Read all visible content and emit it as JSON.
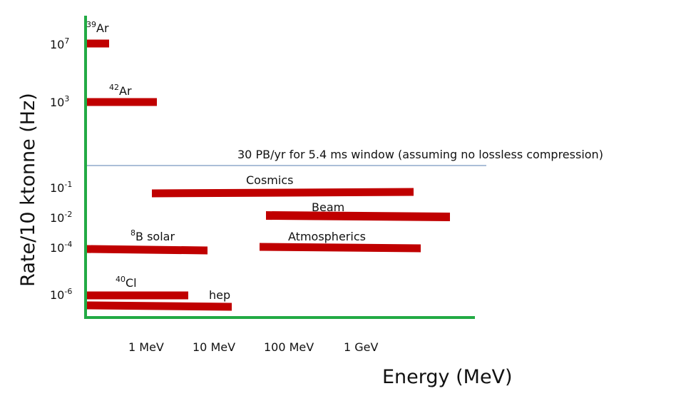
{
  "chart_data": {
    "type": "bar",
    "orientation": "horizontal-range",
    "title": "",
    "xlabel": "Energy (MeV)",
    "ylabel": "Rate/10 ktonne (Hz)",
    "x_ticks": [
      "1 MeV",
      "10 MeV",
      "100 MeV",
      "1 GeV"
    ],
    "y_ticks": [
      {
        "base": "10",
        "exp": "7"
      },
      {
        "base": "10",
        "exp": "3"
      },
      {
        "base": "10",
        "exp": "-1"
      },
      {
        "base": "10",
        "exp": "-2"
      },
      {
        "base": "10",
        "exp": "-4"
      },
      {
        "base": "10",
        "exp": "-6"
      }
    ],
    "x_scale": "log",
    "y_scale": "log",
    "grid": false,
    "bar_color": "#c00000",
    "axis_color": "#22aa44",
    "reference_line": {
      "label": "30 PB/yr for 5.4 ms window (assuming no lossless compression)",
      "color": "#8fa8cc"
    },
    "series": [
      {
        "name": "Ar",
        "mass": "39",
        "rate_exp": 7,
        "energy_min": "below 1 MeV",
        "energy_max": "below 1 MeV"
      },
      {
        "name": "Ar",
        "mass": "42",
        "rate_exp": 3,
        "energy_min": "below 1 MeV",
        "energy_max": "~1 MeV"
      },
      {
        "name": "Cosmics",
        "rate_exp": -1,
        "energy_min": "~1 MeV",
        "energy_max": "~10 GeV"
      },
      {
        "name": "Beam",
        "rate_exp": -2,
        "energy_min": "~100 MeV",
        "energy_max": "~100 GeV"
      },
      {
        "name": "B solar",
        "mass": "8",
        "rate_exp": -4,
        "energy_min": "below 1 MeV",
        "energy_max": "~10 MeV"
      },
      {
        "name": "Atmospherics",
        "rate_exp": -4,
        "energy_min": "~100 MeV",
        "energy_max": "~10 GeV"
      },
      {
        "name": "Cl",
        "mass": "40",
        "rate_exp": -6,
        "energy_min": "below 1 MeV",
        "energy_max": "~10 MeV"
      },
      {
        "name": "hep",
        "rate_exp": -6,
        "energy_min": "below 1 MeV",
        "energy_max": "~20 MeV"
      }
    ]
  }
}
